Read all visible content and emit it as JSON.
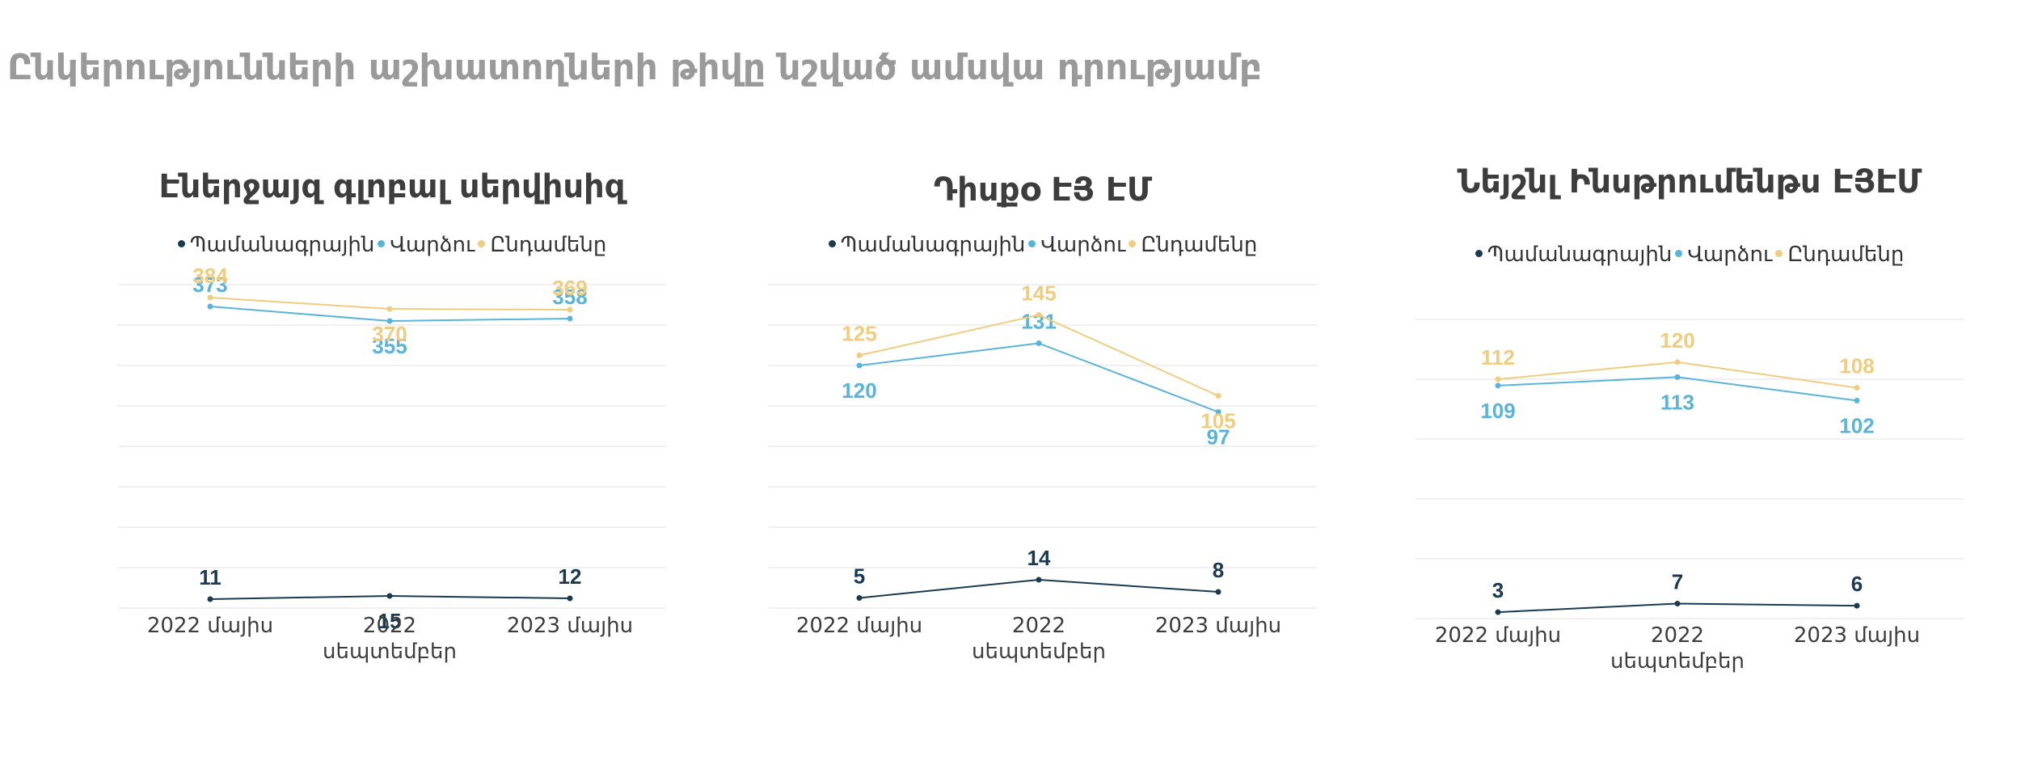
{
  "title": "Ընկերությունների աշխատողների թիվը նշված ամսվա դրությամբ",
  "colors": {
    "series": [
      "#1a3a4f",
      "#5ab4d9",
      "#f0cc7e"
    ],
    "grid": "#ececec"
  },
  "chart_data": [
    {
      "type": "line",
      "title": "Էներջայզ գլոբալ սերվիսիզ",
      "categories": [
        "2022 մայիս",
        "2022 սեպտեմբեր",
        "2023 մայիս"
      ],
      "series": [
        {
          "name": "Պամանագրային",
          "values": [
            11,
            15,
            12
          ]
        },
        {
          "name": "Վարձու",
          "values": [
            373,
            355,
            358
          ]
        },
        {
          "name": "Ընդամենը",
          "values": [
            384,
            370,
            369
          ]
        }
      ],
      "ylim": [
        0,
        400
      ],
      "grid": true,
      "legend": "top"
    },
    {
      "type": "line",
      "title": "Դիսքօ ԷՅ ԷՄ",
      "categories": [
        "2022 մայիս",
        "2022 սեպտեմբեր",
        "2023 մայիս"
      ],
      "series": [
        {
          "name": "Պամանագրային",
          "values": [
            5,
            14,
            8
          ]
        },
        {
          "name": "Վարձու",
          "values": [
            120,
            131,
            97
          ]
        },
        {
          "name": "Ընդամենը",
          "values": [
            125,
            145,
            105
          ]
        }
      ],
      "ylim": [
        0,
        160
      ],
      "grid": true,
      "legend": "top"
    },
    {
      "type": "line",
      "title": "Նեյշնլ Ինսթրումենթս ԷՅԷՄ",
      "categories": [
        "2022 մայիս",
        "2022 սեպտեմբեր",
        "2023 մայիս"
      ],
      "series": [
        {
          "name": "Պամանագրային",
          "values": [
            3,
            7,
            6
          ]
        },
        {
          "name": "Վարձու",
          "values": [
            109,
            113,
            102
          ]
        },
        {
          "name": "Ընդամենը",
          "values": [
            112,
            120,
            108
          ]
        }
      ],
      "ylim": [
        0,
        140
      ],
      "grid": true,
      "legend": "top"
    }
  ]
}
